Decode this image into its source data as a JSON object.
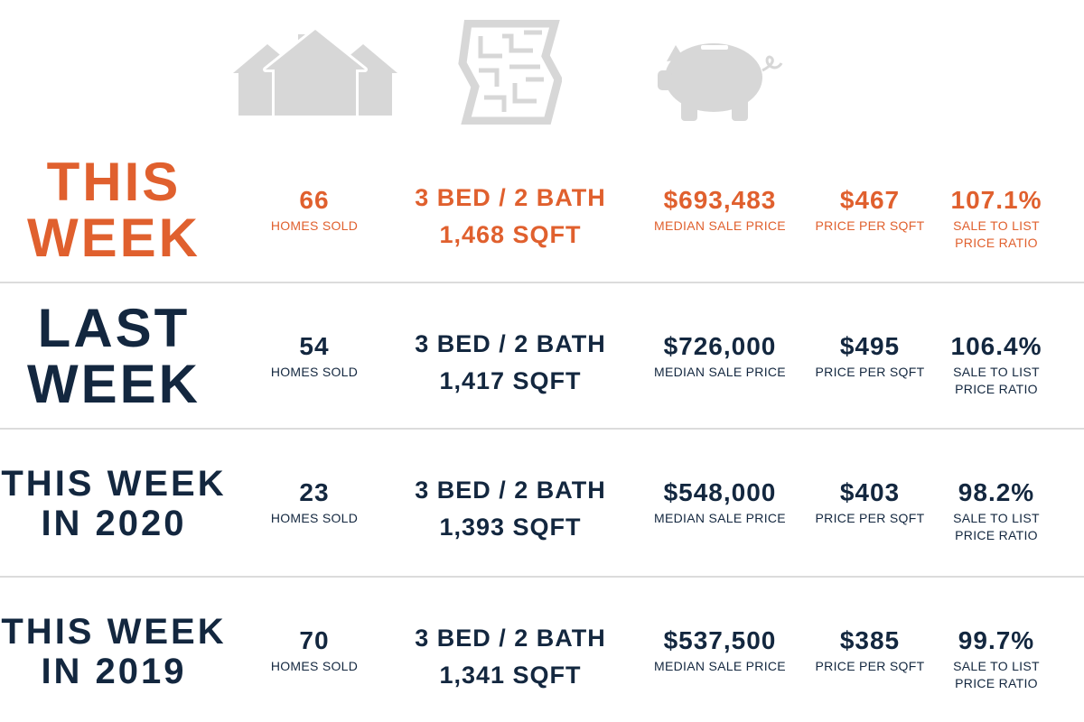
{
  "colors": {
    "highlight": "#e0602e",
    "navy": "#13273f",
    "icon": "#d7d7d7",
    "divider": "#dcdcdc"
  },
  "icons": [
    "houses-icon",
    "floor-plan-icon",
    "piggy-bank-icon"
  ],
  "rows": [
    {
      "label1": "THIS",
      "label2": "WEEK",
      "homes_sold": "66",
      "homes_sold_label": "HOMES SOLD",
      "beds_baths": "3 BED / 2 BATH",
      "sqft": "1,468 SQFT",
      "median_price": "$693,483",
      "median_price_label": "MEDIAN SALE PRICE",
      "price_sqft": "$467",
      "price_sqft_label": "PRICE PER SQFT",
      "ratio": "107.1%",
      "ratio_label1": "SALE TO LIST",
      "ratio_label2": "PRICE RATIO"
    },
    {
      "label1": "LAST",
      "label2": "WEEK",
      "homes_sold": "54",
      "homes_sold_label": "HOMES SOLD",
      "beds_baths": "3 BED / 2 BATH",
      "sqft": "1,417 SQFT",
      "median_price": "$726,000",
      "median_price_label": "MEDIAN SALE PRICE",
      "price_sqft": "$495",
      "price_sqft_label": "PRICE PER SQFT",
      "ratio": "106.4%",
      "ratio_label1": "SALE TO LIST",
      "ratio_label2": "PRICE RATIO"
    },
    {
      "label1": "THIS WEEK",
      "label2": "IN 2020",
      "homes_sold": "23",
      "homes_sold_label": "HOMES SOLD",
      "beds_baths": "3 BED / 2 BATH",
      "sqft": "1,393 SQFT",
      "median_price": "$548,000",
      "median_price_label": "MEDIAN SALE PRICE",
      "price_sqft": "$403",
      "price_sqft_label": "PRICE PER SQFT",
      "ratio": "98.2%",
      "ratio_label1": "SALE TO LIST",
      "ratio_label2": "PRICE RATIO"
    },
    {
      "label1": "THIS WEEK",
      "label2": "IN 2019",
      "homes_sold": "70",
      "homes_sold_label": "HOMES SOLD",
      "beds_baths": "3 BED / 2 BATH",
      "sqft": "1,341 SQFT",
      "median_price": "$537,500",
      "median_price_label": "MEDIAN SALE PRICE",
      "price_sqft": "$385",
      "price_sqft_label": "PRICE PER SQFT",
      "ratio": "99.7%",
      "ratio_label1": "SALE TO LIST",
      "ratio_label2": "PRICE RATIO"
    }
  ]
}
